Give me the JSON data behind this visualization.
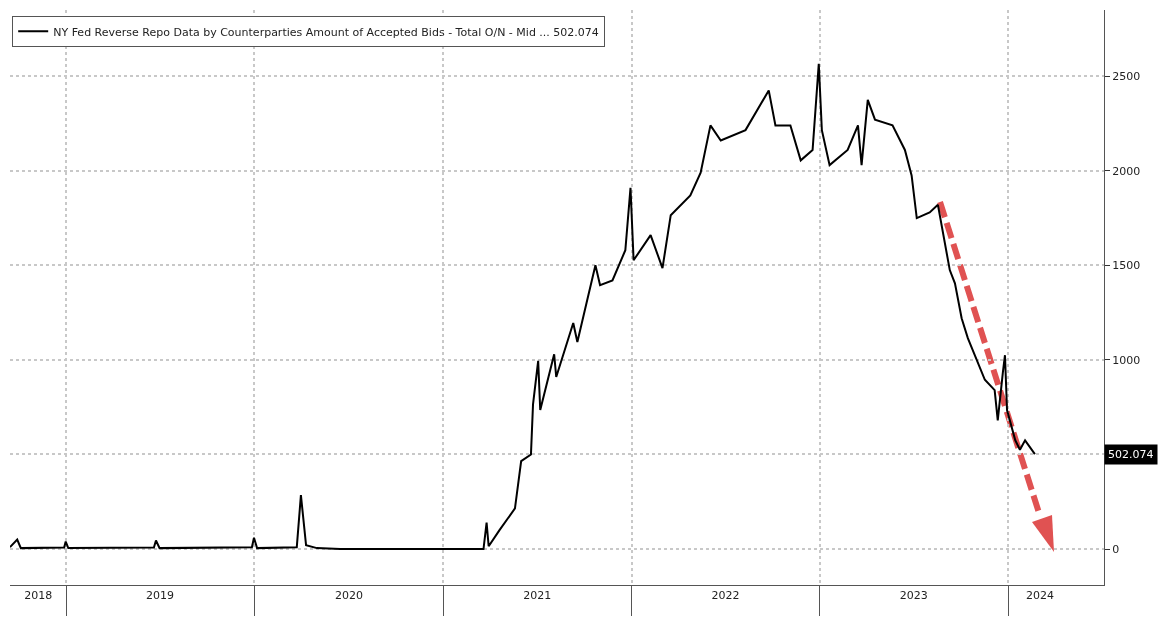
{
  "chart_data": {
    "type": "line",
    "legend": "top left",
    "grid": true,
    "line_style": "solid",
    "marker": "none",
    "xlim": [
      "2018-09-14",
      "2024-07-05"
    ],
    "xticks": [
      {
        "value": "2019-01-01",
        "label": null
      },
      {
        "value": "2020-01-01",
        "label": null
      },
      {
        "value": "2021-01-01",
        "label": null
      },
      {
        "value": "2022-01-01",
        "label": null
      },
      {
        "value": "2023-01-01",
        "label": null
      },
      {
        "value": "2024-01-01",
        "label": null
      },
      {
        "value": "2018-11-08",
        "label": "2018"
      },
      {
        "value": "2019-07-02",
        "label": "2019"
      },
      {
        "value": "2020-07-02",
        "label": "2020"
      },
      {
        "value": "2021-07-02",
        "label": "2021"
      },
      {
        "value": "2022-07-02",
        "label": "2022"
      },
      {
        "value": "2023-07-02",
        "label": "2023"
      },
      {
        "value": "2024-03-03",
        "label": "2024"
      }
    ],
    "ylim": [
      -190,
      2850
    ],
    "yticks": [
      0,
      {
        "value": 500,
        "label": null
      },
      1000,
      1500,
      2000,
      2500
    ],
    "annotations": [
      "502.074"
    ],
    "series": [
      {
        "name": "NY Fed Reverse Repo Data by Counterparties Amount of Accepted Bids - Total O/N - Mid ... 502.074",
        "color": "#000000",
        "x": [
          "2018-09-14",
          "2018-09-28",
          "2018-10-05",
          "2018-12-28",
          "2018-12-31",
          "2019-01-05",
          "2019-06-20",
          "2019-06-24",
          "2019-07-01",
          "2019-12-27",
          "2019-12-31",
          "2020-01-06",
          "2020-03-23",
          "2020-03-31",
          "2020-04-10",
          "2020-05-01",
          "2020-06-15",
          "2021-03-20",
          "2021-03-26",
          "2021-03-30",
          "2021-04-20",
          "2021-05-20",
          "2021-06-01",
          "2021-06-20",
          "2021-06-24",
          "2021-07-04",
          "2021-07-08",
          "2021-08-04",
          "2021-08-08",
          "2021-09-10",
          "2021-09-18",
          "2021-10-07",
          "2021-10-23",
          "2021-11-01",
          "2021-11-25",
          "2021-12-20",
          "2021-12-30",
          "2022-01-05",
          "2022-02-07",
          "2022-03-02",
          "2022-03-18",
          "2022-04-25",
          "2022-05-15",
          "2022-06-03",
          "2022-06-23",
          "2022-08-10",
          "2022-09-24",
          "2022-10-07",
          "2022-11-05",
          "2022-11-25",
          "2022-12-18",
          "2022-12-30",
          "2023-01-05",
          "2023-01-20",
          "2023-02-24",
          "2023-03-16",
          "2023-03-23",
          "2023-04-04",
          "2023-04-18",
          "2023-05-22",
          "2023-06-15",
          "2023-06-28",
          "2023-07-08",
          "2023-08-02",
          "2023-08-18",
          "2023-09-10",
          "2023-09-20",
          "2023-10-03",
          "2023-10-15",
          "2023-11-17",
          "2023-12-06",
          "2023-12-12",
          "2023-12-22",
          "2023-12-26",
          "2023-12-30",
          "2024-01-15",
          "2024-01-24",
          "2024-02-03",
          "2024-02-22"
        ],
        "values": [
          10,
          50,
          5,
          8,
          40,
          5,
          8,
          45,
          5,
          10,
          60,
          5,
          10,
          285,
          20,
          5,
          0,
          0,
          140,
          15,
          100,
          215,
          465,
          500,
          765,
          995,
          735,
          1030,
          910,
          1195,
          1095,
          1316,
          1500,
          1395,
          1420,
          1580,
          1910,
          1527,
          1660,
          1485,
          1765,
          1870,
          1990,
          2240,
          2160,
          2215,
          2425,
          2240,
          2240,
          2055,
          2110,
          2565,
          2215,
          2030,
          2110,
          2240,
          2030,
          2375,
          2270,
          2240,
          2110,
          1975,
          1750,
          1780,
          1820,
          1475,
          1405,
          1220,
          1115,
          895,
          840,
          680,
          935,
          1025,
          735,
          575,
          525,
          575,
          502.074
        ]
      }
    ]
  }
}
